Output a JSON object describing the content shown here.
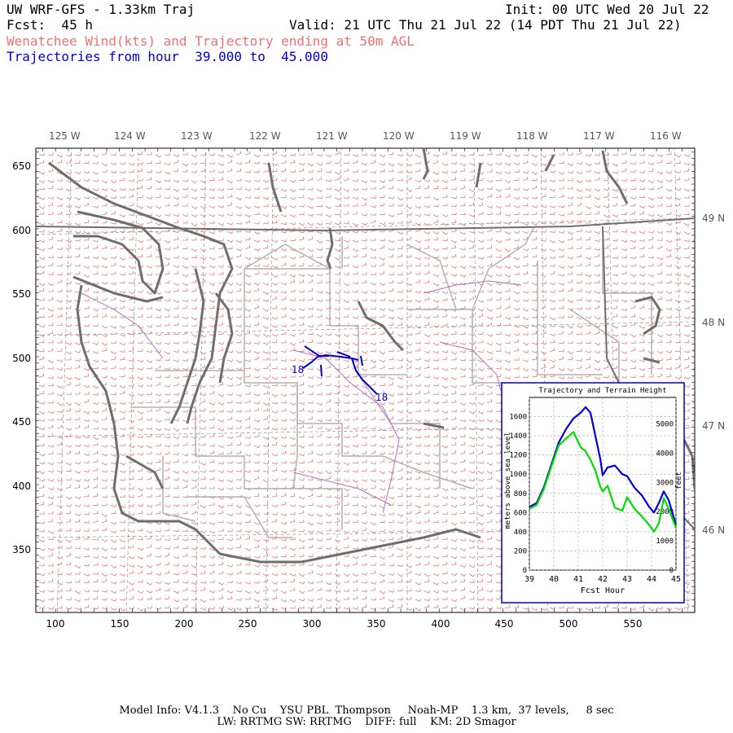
{
  "header": {
    "title": "UW WRF-GFS - 1.33km Traj",
    "init": "Init: 00 UTC Wed 20 Jul 22",
    "fcst": "Fcst:  45 h",
    "valid": "Valid: 21 UTC Thu 21 Jul 22 (14 PDT Thu 21 Jul 22)",
    "product": "Wenatchee Wind(kts) and Trajectory ending at 50m AGL",
    "traj_range": "Trajectories from hour  39.000 to  45.000"
  },
  "map": {
    "lon_labels": [
      "125 W",
      "124 W",
      "123 W",
      "122 W",
      "121 W",
      "120 W",
      "119 W",
      "118 W",
      "117 W",
      "116 W"
    ],
    "lat_labels": [
      "49 N",
      "48 N",
      "47 N",
      "46 N"
    ],
    "y_ticks": [
      "650",
      "600",
      "550",
      "500",
      "450",
      "400",
      "350"
    ],
    "x_ticks": [
      "100",
      "150",
      "200",
      "250",
      "300",
      "350",
      "400",
      "450",
      "500",
      "550"
    ],
    "traj_labels": [
      "18",
      "18"
    ],
    "colors": {
      "wind_barbs": "#f07070",
      "coast": "#707070",
      "trajectory": "#0000cc",
      "borders": "#b0b0b0",
      "rivers": "#b070c0"
    }
  },
  "inset": {
    "title": "Trajectory and Terrain Height",
    "ylabel_left": "meters above sea level",
    "ylabel_right": "feet",
    "xlabel": "Fcst Hour"
  },
  "chart_data": {
    "type": "line",
    "title": "Trajectory and Terrain Height",
    "xlabel": "Fcst Hour",
    "ylabel": "meters above sea level",
    "ylabel_right": "feet",
    "xlim": [
      39,
      45
    ],
    "ylim": [
      0,
      1800
    ],
    "ylim_right": [
      0,
      5905
    ],
    "x_ticks": [
      "39",
      "40",
      "41",
      "42",
      "43",
      "44",
      "45"
    ],
    "y_ticks": [
      "0",
      "200",
      "400",
      "600",
      "800",
      "1000",
      "1200",
      "1400",
      "1600"
    ],
    "y_ticks_right": [
      "0",
      "1000",
      "2000",
      "3000",
      "4000",
      "5000"
    ],
    "grid": true,
    "series": [
      {
        "color": "#0000dd",
        "x": [
          39.0,
          39.3,
          39.6,
          39.9,
          40.2,
          40.5,
          40.8,
          41.1,
          41.3,
          41.5,
          41.7,
          41.9,
          42.0,
          42.2,
          42.5,
          42.8,
          43.0,
          43.3,
          43.6,
          43.9,
          44.1,
          44.3,
          44.5,
          44.7,
          45.0
        ],
        "y": [
          660,
          700,
          870,
          1100,
          1330,
          1470,
          1580,
          1640,
          1700,
          1640,
          1400,
          1160,
          990,
          1070,
          1090,
          1000,
          980,
          860,
          780,
          660,
          600,
          700,
          820,
          730,
          470
        ]
      },
      {
        "color": "#00dd00",
        "x": [
          39.0,
          39.3,
          39.6,
          39.9,
          40.2,
          40.5,
          40.8,
          41.1,
          41.3,
          41.5,
          41.7,
          41.9,
          42.0,
          42.2,
          42.5,
          42.8,
          43.0,
          43.3,
          43.6,
          43.9,
          44.1,
          44.3,
          44.5,
          44.7,
          45.0
        ],
        "y": [
          640,
          680,
          850,
          1080,
          1300,
          1370,
          1440,
          1280,
          1240,
          1150,
          1040,
          870,
          820,
          880,
          650,
          620,
          760,
          640,
          560,
          470,
          400,
          490,
          750,
          640,
          440
        ]
      }
    ]
  },
  "footer": {
    "line1": "Model Info: V4.1.3    No Cu    YSU PBL  Thompson     Noah-MP    1.3 km,  37 levels,     8 sec",
    "line2": "LW: RRTMG SW: RRTMG    DIFF: full    KM: 2D Smagor"
  }
}
